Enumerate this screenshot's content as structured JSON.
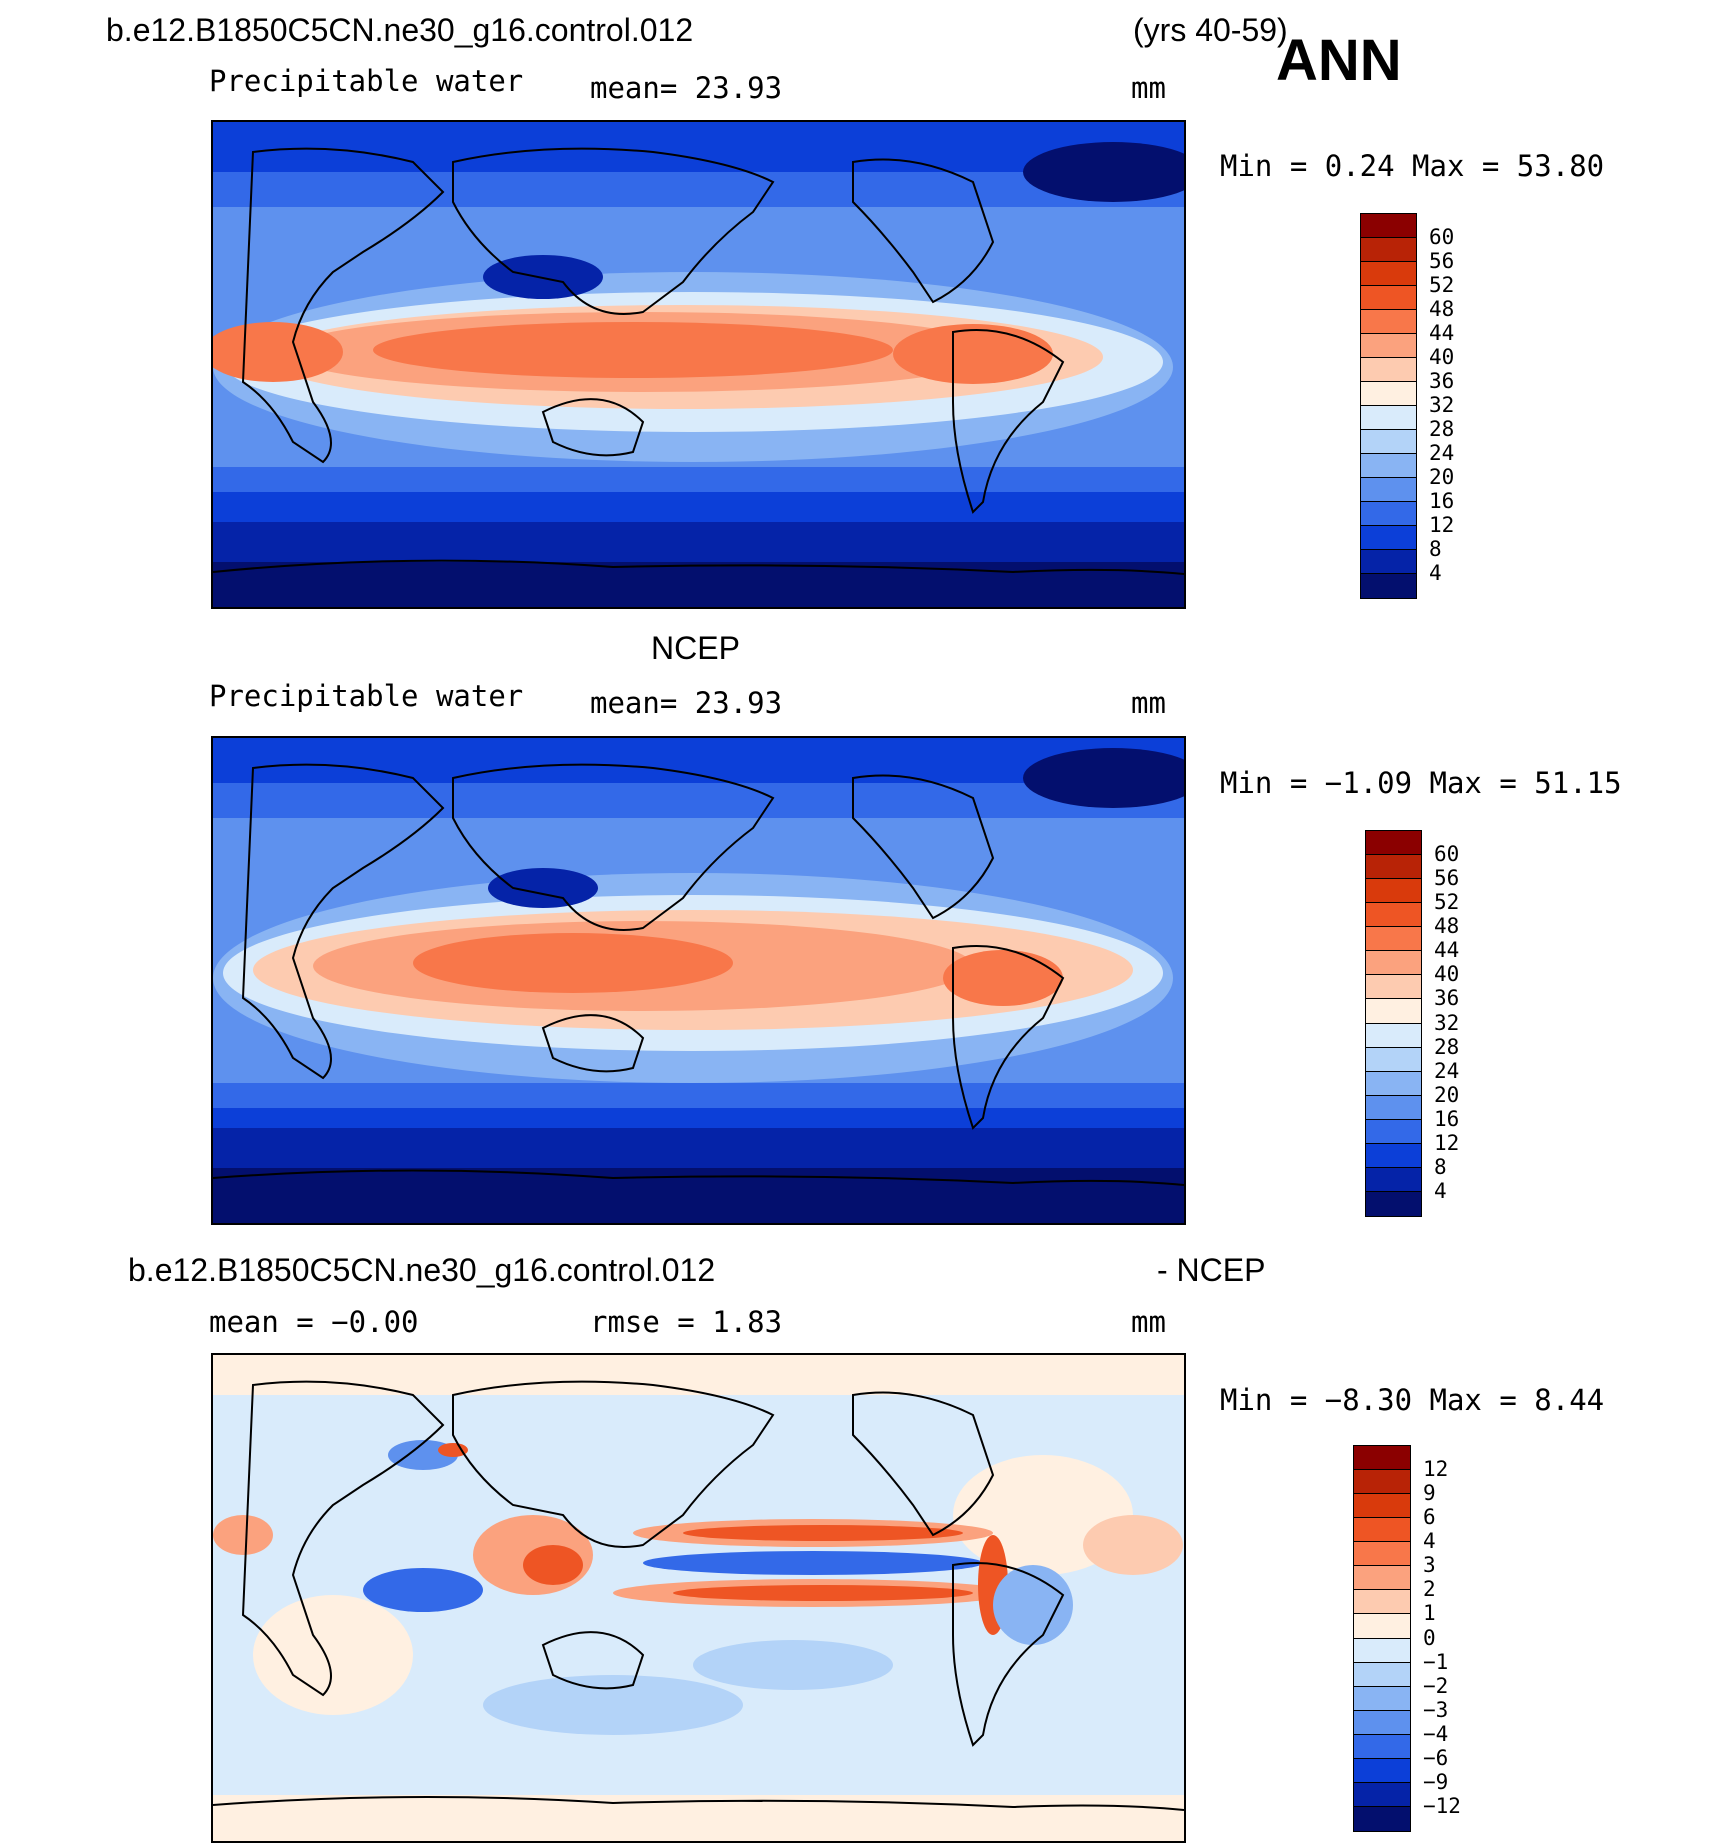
{
  "header": {
    "case_name": "b.e12.B1850C5CN.ne30_g16.control.012",
    "years": "(yrs 40-59)",
    "season": "ANN"
  },
  "panels": [
    {
      "id": "model",
      "title": "",
      "left_label": "Precipitable water",
      "mid_label": "mean=   23.93",
      "units": "mm",
      "minmax": "Min =    0.24 Max =   53.80",
      "colorbar": {
        "levels": [
          "60",
          "56",
          "52",
          "48",
          "44",
          "40",
          "36",
          "32",
          "28",
          "24",
          "20",
          "16",
          "12",
          "8",
          "4"
        ],
        "colors": [
          "#8b0000",
          "#b82306",
          "#d93a0c",
          "#ee5524",
          "#f8774a",
          "#fba27e",
          "#fdcbb0",
          "#fff0e1",
          "#d9ebfb",
          "#b3d3f8",
          "#89b4f3",
          "#5e91ee",
          "#3369e8",
          "#0c3fd8",
          "#0523a8",
          "#030f6e"
        ]
      }
    },
    {
      "id": "obs",
      "title": "NCEP",
      "left_label": "Precipitable water",
      "mid_label": "mean=   23.93",
      "units": "mm",
      "minmax": "Min =  −1.09 Max =   51.15",
      "colorbar": {
        "levels": [
          "60",
          "56",
          "52",
          "48",
          "44",
          "40",
          "36",
          "32",
          "28",
          "24",
          "20",
          "16",
          "12",
          "8",
          "4"
        ],
        "colors": [
          "#8b0000",
          "#b82306",
          "#d93a0c",
          "#ee5524",
          "#f8774a",
          "#fba27e",
          "#fdcbb0",
          "#fff0e1",
          "#d9ebfb",
          "#b3d3f8",
          "#89b4f3",
          "#5e91ee",
          "#3369e8",
          "#0c3fd8",
          "#0523a8",
          "#030f6e"
        ]
      }
    },
    {
      "id": "diff",
      "title_left": "b.e12.B1850C5CN.ne30_g16.control.012",
      "title_right": "- NCEP",
      "left_label": "mean =   −0.00",
      "mid_label": "rmse =    1.83",
      "units": "mm",
      "minmax": "Min =  −8.30 Max =    8.44",
      "colorbar": {
        "levels": [
          "12",
          "9",
          "6",
          "4",
          "3",
          "2",
          "1",
          "0",
          "−1",
          "−2",
          "−3",
          "−4",
          "−6",
          "−9",
          "−12"
        ],
        "colors": [
          "#8b0000",
          "#b82306",
          "#d93a0c",
          "#ee5524",
          "#f8774a",
          "#fba27e",
          "#fdcbb0",
          "#fff0e1",
          "#d9ebfb",
          "#b3d3f8",
          "#89b4f3",
          "#5e91ee",
          "#3369e8",
          "#0c3fd8",
          "#0523a8",
          "#030f6e"
        ]
      }
    }
  ],
  "chart_data": [
    {
      "type": "heatmap",
      "title": "b.e12.B1850C5CN.ne30_g16.control.012 (yrs 40-59) ANN",
      "variable": "Precipitable water",
      "units": "mm",
      "mean": 23.93,
      "min": 0.24,
      "max": 53.8,
      "contour_levels": [
        4,
        8,
        12,
        16,
        20,
        24,
        28,
        32,
        36,
        40,
        44,
        48,
        52,
        56,
        60
      ]
    },
    {
      "type": "heatmap",
      "title": "NCEP",
      "variable": "Precipitable water",
      "units": "mm",
      "mean": 23.93,
      "min": -1.09,
      "max": 51.15,
      "contour_levels": [
        4,
        8,
        12,
        16,
        20,
        24,
        28,
        32,
        36,
        40,
        44,
        48,
        52,
        56,
        60
      ]
    },
    {
      "type": "heatmap",
      "title": "b.e12.B1850C5CN.ne30_g16.control.012 - NCEP",
      "units": "mm",
      "mean": -0.0,
      "rmse": 1.83,
      "min": -8.3,
      "max": 8.44,
      "contour_levels": [
        -12,
        -9,
        -6,
        -4,
        -3,
        -2,
        -1,
        0,
        1,
        2,
        3,
        4,
        6,
        9,
        12
      ]
    }
  ]
}
